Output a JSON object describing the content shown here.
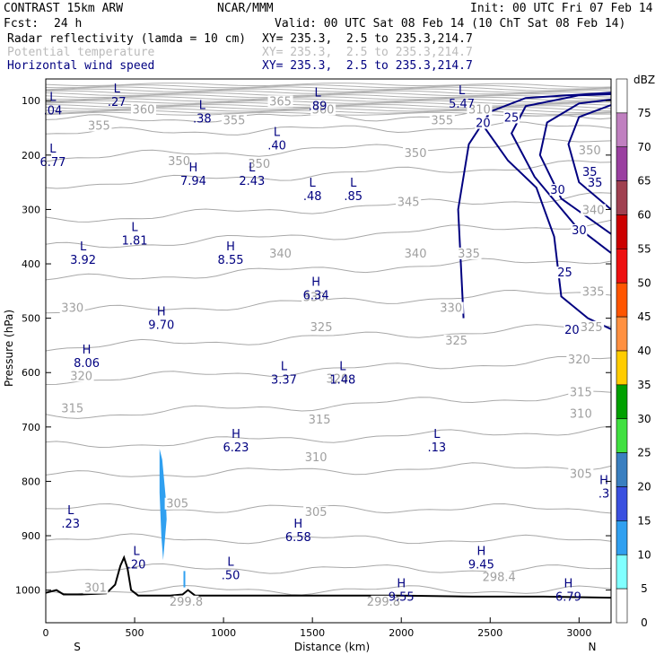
{
  "header": {
    "title": "CONTRAST 15km ARW",
    "org": "NCAR/MMM",
    "init": "Init: 00 UTC Fri 07 Feb 14",
    "fcst_label": "Fcst:",
    "fcst_value": "24 h",
    "valid": "Valid: 00 UTC Sat 08 Feb 14 (10 ChT Sat 08 Feb 14)",
    "fields": [
      {
        "name": "Radar reflectivity (lamda = 10 cm)",
        "xy": "XY= 235.3,  2.5 to 235.3,214.7",
        "color": "#000000"
      },
      {
        "name": "Potential temperature",
        "xy": "XY= 235.3,  2.5 to 235.3,214.7",
        "color": "#bbbbbb"
      },
      {
        "name": "Horizontal wind speed",
        "xy": "XY= 235.3,  2.5 to 235.3,214.7",
        "color": "#000080"
      }
    ]
  },
  "chart_data": {
    "type": "cross-section",
    "xlabel": "Distance (km)",
    "ylabel": "Pressure (hPa)",
    "xlim": [
      0,
      3180
    ],
    "ylim": [
      1060,
      60
    ],
    "x_ticks": [
      0,
      500,
      1000,
      1500,
      2000,
      2500,
      3000
    ],
    "y_ticks": [
      100,
      200,
      300,
      400,
      500,
      600,
      700,
      800,
      900,
      1000
    ],
    "x_end_labels": {
      "left": "S",
      "right": "N"
    },
    "colorbar": {
      "unit": "dBZ",
      "levels": [
        75,
        70,
        65,
        60,
        55,
        50,
        45,
        40,
        35,
        30,
        25,
        20,
        15,
        10,
        5,
        0
      ],
      "colors": [
        "#ffffff",
        "#c080c0",
        "#9a3fa0",
        "#a04050",
        "#cc0000",
        "#ee1010",
        "#ff5500",
        "#ff9040",
        "#ffcc00",
        "#00a000",
        "#40e040",
        "#3a7fc0",
        "#3a50e0",
        "#30a0f0",
        "#80ffff",
        "#ffffff"
      ]
    },
    "theta_levels": [
      {
        "label": "298.4",
        "x": 2550,
        "p": 980
      },
      {
        "label": "301",
        "x": 280,
        "p": 1000
      },
      {
        "label": "299.8",
        "x": 790,
        "p": 1025
      },
      {
        "label": "299.8",
        "x": 1900,
        "p": 1025
      },
      {
        "label": "305",
        "x": 740,
        "p": 845
      },
      {
        "label": "305",
        "x": 1520,
        "p": 860
      },
      {
        "label": "305",
        "x": 3010,
        "p": 790
      },
      {
        "label": "310",
        "x": 1520,
        "p": 760
      },
      {
        "label": "310",
        "x": 3010,
        "p": 680
      },
      {
        "label": "315",
        "x": 150,
        "p": 670
      },
      {
        "label": "315",
        "x": 1540,
        "p": 690
      },
      {
        "label": "315",
        "x": 3010,
        "p": 640
      },
      {
        "label": "320",
        "x": 200,
        "p": 610
      },
      {
        "label": "320",
        "x": 1640,
        "p": 615
      },
      {
        "label": "320",
        "x": 3000,
        "p": 580
      },
      {
        "label": "325",
        "x": 1550,
        "p": 520
      },
      {
        "label": "325",
        "x": 2310,
        "p": 545
      },
      {
        "label": "325",
        "x": 3070,
        "p": 520
      },
      {
        "label": "330",
        "x": 150,
        "p": 485
      },
      {
        "label": "330",
        "x": 1510,
        "p": 465
      },
      {
        "label": "330",
        "x": 2280,
        "p": 485
      },
      {
        "label": "335",
        "x": 2380,
        "p": 385
      },
      {
        "label": "335",
        "x": 3080,
        "p": 455
      },
      {
        "label": "340",
        "x": 1320,
        "p": 385
      },
      {
        "label": "340",
        "x": 2080,
        "p": 385
      },
      {
        "label": "340",
        "x": 3080,
        "p": 305
      },
      {
        "label": "345",
        "x": 2040,
        "p": 290
      },
      {
        "label": "350",
        "x": 750,
        "p": 215
      },
      {
        "label": "350",
        "x": 1200,
        "p": 220
      },
      {
        "label": "350",
        "x": 2080,
        "p": 200
      },
      {
        "label": "350",
        "x": 3060,
        "p": 195
      },
      {
        "label": "355",
        "x": 300,
        "p": 150
      },
      {
        "label": "355",
        "x": 1060,
        "p": 140
      },
      {
        "label": "355",
        "x": 2230,
        "p": 140
      },
      {
        "label": "360",
        "x": 550,
        "p": 120
      },
      {
        "label": "360",
        "x": 1560,
        "p": 120
      },
      {
        "label": "365",
        "x": 1320,
        "p": 105
      },
      {
        "label": "310",
        "x": 2440,
        "p": 120
      }
    ],
    "wind_speed_contours": [
      {
        "label": "20",
        "x": 2460,
        "p": 145
      },
      {
        "label": "20",
        "x": 2960,
        "p": 525
      },
      {
        "label": "25",
        "x": 2620,
        "p": 135
      },
      {
        "label": "25",
        "x": 2920,
        "p": 420
      },
      {
        "label": "30",
        "x": 2880,
        "p": 268
      },
      {
        "label": "30",
        "x": 3000,
        "p": 342
      },
      {
        "label": "35",
        "x": 3090,
        "p": 255
      },
      {
        "label": "35",
        "x": 3060,
        "p": 235
      }
    ],
    "extrema": [
      {
        "type": "L",
        "value": ".04",
        "x": 40,
        "p": 110
      },
      {
        "type": "L",
        "value": ".27",
        "x": 400,
        "p": 95
      },
      {
        "type": "L",
        "value": ".38",
        "x": 880,
        "p": 125
      },
      {
        "type": "L",
        "value": ".89",
        "x": 1530,
        "p": 102
      },
      {
        "type": "L",
        "value": "5.47",
        "x": 2340,
        "p": 98
      },
      {
        "type": "L",
        "value": ".40",
        "x": 1300,
        "p": 175
      },
      {
        "type": "L",
        "value": "6.77",
        "x": 40,
        "p": 205
      },
      {
        "type": "H",
        "value": "7.94",
        "x": 830,
        "p": 240
      },
      {
        "type": "L",
        "value": "2.43",
        "x": 1160,
        "p": 240
      },
      {
        "type": "L",
        "value": ".48",
        "x": 1500,
        "p": 268
      },
      {
        "type": "L",
        "value": ".85",
        "x": 1730,
        "p": 268
      },
      {
        "type": "L",
        "value": "1.81",
        "x": 500,
        "p": 350
      },
      {
        "type": "L",
        "value": "3.92",
        "x": 210,
        "p": 385
      },
      {
        "type": "H",
        "value": "8.55",
        "x": 1040,
        "p": 385
      },
      {
        "type": "H",
        "value": "6.34",
        "x": 1520,
        "p": 450
      },
      {
        "type": "H",
        "value": "9.70",
        "x": 650,
        "p": 505
      },
      {
        "type": "H",
        "value": "8.06",
        "x": 230,
        "p": 575
      },
      {
        "type": "L",
        "value": "3.37",
        "x": 1340,
        "p": 605
      },
      {
        "type": "L",
        "value": "1.48",
        "x": 1670,
        "p": 605
      },
      {
        "type": "H",
        "value": "6.23",
        "x": 1070,
        "p": 730
      },
      {
        "type": "L",
        "value": ".13",
        "x": 2200,
        "p": 730
      },
      {
        "type": "H",
        "value": ".3",
        "x": 3140,
        "p": 815
      },
      {
        "type": "L",
        "value": ".23",
        "x": 140,
        "p": 870
      },
      {
        "type": "H",
        "value": "6.58",
        "x": 1420,
        "p": 895
      },
      {
        "type": "L",
        "value": ".20",
        "x": 510,
        "p": 945
      },
      {
        "type": "H",
        "value": "9.45",
        "x": 2450,
        "p": 945
      },
      {
        "type": "L",
        "value": ".50",
        "x": 1040,
        "p": 965
      },
      {
        "type": "H",
        "value": "9.55",
        "x": 2000,
        "p": 1005
      },
      {
        "type": "H",
        "value": "6.79",
        "x": 2940,
        "p": 1005
      }
    ],
    "terrain": [
      [
        0,
        1005
      ],
      [
        60,
        1000
      ],
      [
        100,
        1008
      ],
      [
        200,
        1008
      ],
      [
        340,
        1006
      ],
      [
        390,
        990
      ],
      [
        420,
        955
      ],
      [
        440,
        940
      ],
      [
        460,
        960
      ],
      [
        480,
        1000
      ],
      [
        520,
        1010
      ],
      [
        600,
        1010
      ],
      [
        700,
        1010
      ],
      [
        770,
        1008
      ],
      [
        800,
        1000
      ],
      [
        840,
        1010
      ],
      [
        1200,
        1010
      ],
      [
        1600,
        1010
      ],
      [
        2000,
        1010
      ],
      [
        2400,
        1012
      ],
      [
        2800,
        1012
      ],
      [
        3180,
        1014
      ]
    ],
    "reflectivity_areas": [
      {
        "dbz": 10,
        "pts": [
          [
            640,
            740
          ],
          [
            655,
            760
          ],
          [
            675,
            830
          ],
          [
            680,
            870
          ],
          [
            660,
            945
          ],
          [
            650,
            900
          ],
          [
            640,
            820
          ]
        ]
      },
      {
        "dbz": 10,
        "pts": [
          [
            775,
            965
          ],
          [
            785,
            965
          ],
          [
            785,
            995
          ],
          [
            775,
            995
          ]
        ]
      }
    ]
  }
}
